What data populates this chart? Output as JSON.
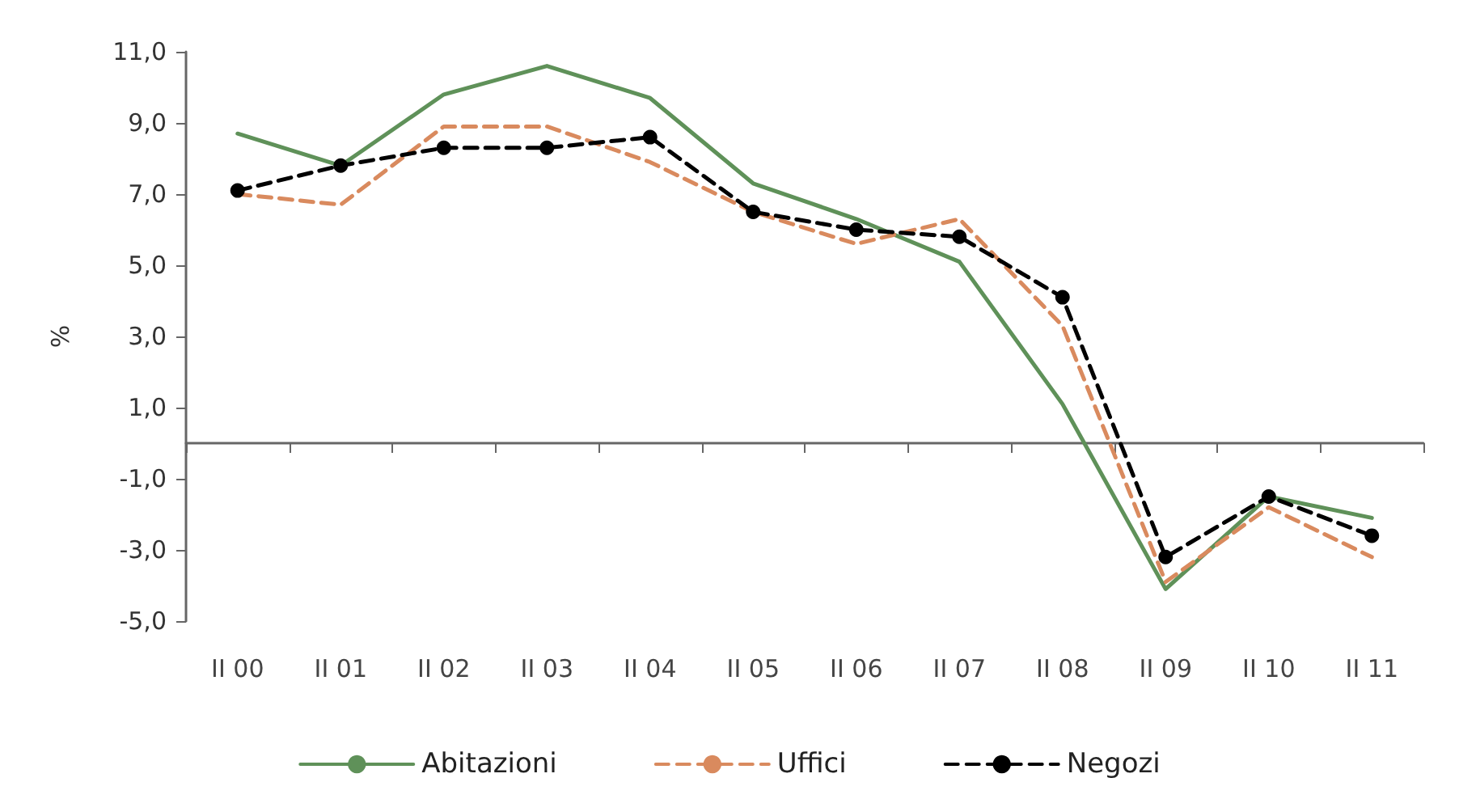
{
  "chart_data": {
    "type": "line",
    "ylabel": "%",
    "categories": [
      "II 00",
      "II 01",
      "II 02",
      "II 03",
      "II 04",
      "II 05",
      "II 06",
      "II 07",
      "II 08",
      "II 09",
      "II 10",
      "II 11"
    ],
    "series": [
      {
        "name": "Abitazioni",
        "color": "#5f9159",
        "line_style": "solid",
        "marker": "none",
        "values": [
          8.7,
          7.8,
          9.8,
          10.6,
          9.7,
          7.3,
          6.3,
          5.1,
          1.1,
          -4.1,
          -1.5,
          -2.1
        ]
      },
      {
        "name": "Uffici",
        "color": "#d98a5e",
        "line_style": "dashed",
        "marker": "none",
        "values": [
          7.0,
          6.7,
          8.9,
          8.9,
          7.9,
          6.5,
          5.6,
          6.3,
          3.3,
          -3.9,
          -1.8,
          -3.2
        ]
      },
      {
        "name": "Negozi",
        "color": "#000000",
        "line_style": "dashed",
        "marker": "circle",
        "values": [
          7.1,
          7.8,
          8.3,
          8.3,
          8.6,
          6.5,
          6.0,
          5.8,
          4.1,
          -3.2,
          -1.5,
          -2.6
        ]
      }
    ],
    "ylim": [
      -5,
      11
    ],
    "yticks": [
      {
        "value": -5,
        "label": "-5,0"
      },
      {
        "value": -3,
        "label": "-3,0"
      },
      {
        "value": -1,
        "label": "-1,0"
      },
      {
        "value": 1,
        "label": "1,0"
      },
      {
        "value": 3,
        "label": "3,0"
      },
      {
        "value": 5,
        "label": "5,0"
      },
      {
        "value": 7,
        "label": "7,0"
      },
      {
        "value": 9,
        "label": "9,0"
      },
      {
        "value": 11,
        "label": "11,0"
      }
    ],
    "grid": false,
    "legend": "bottom"
  }
}
